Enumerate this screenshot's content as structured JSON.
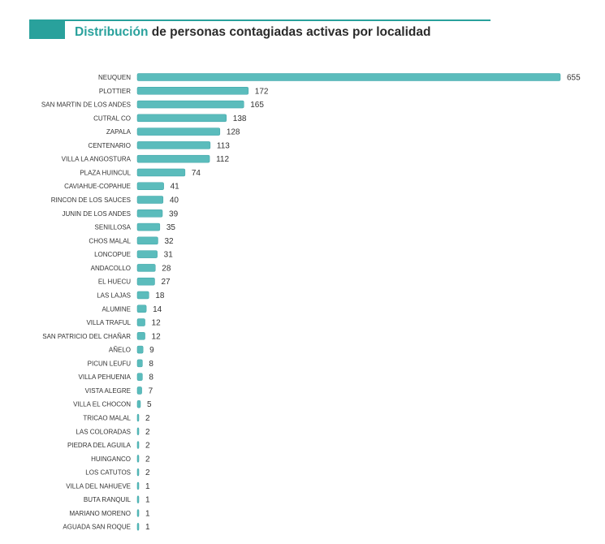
{
  "title": {
    "accent": "Distribución",
    "rest": " de personas contagiadas activas por localidad"
  },
  "colors": {
    "accent": "#29a19c",
    "bar": "#5bbcbc",
    "bar_shade": "#3aa3a6"
  },
  "chart_data": {
    "type": "bar",
    "orientation": "horizontal",
    "title": "Distribución de personas contagiadas activas por localidad",
    "categories": [
      "NEUQUEN",
      "PLOTTIER",
      "SAN MARTIN DE LOS ANDES",
      "CUTRAL CO",
      "ZAPALA",
      "CENTENARIO",
      "VILLA LA ANGOSTURA",
      "PLAZA HUINCUL",
      "CAVIAHUE-COPAHUE",
      "RINCON DE LOS SAUCES",
      "JUNIN DE LOS ANDES",
      "SENILLOSA",
      "CHOS MALAL",
      "LONCOPUE",
      "ANDACOLLO",
      "EL HUECU",
      "LAS LAJAS",
      "ALUMINE",
      "VILLA TRAFUL",
      "SAN PATRICIO DEL CHAÑAR",
      "AÑELO",
      "PICUN LEUFU",
      "VILLA PEHUENIA",
      "VISTA ALEGRE",
      "VILLA EL CHOCON",
      "TRICAO MALAL",
      "LAS COLORADAS",
      "PIEDRA DEL AGUILA",
      "HUINGANCO",
      "LOS CATUTOS",
      "VILLA DEL NAHUEVE",
      "BUTA RANQUIL",
      "MARIANO MORENO",
      "AGUADA SAN ROQUE"
    ],
    "values": [
      655,
      172,
      165,
      138,
      128,
      113,
      112,
      74,
      41,
      40,
      39,
      35,
      32,
      31,
      28,
      27,
      18,
      14,
      12,
      12,
      9,
      8,
      8,
      7,
      5,
      2,
      2,
      2,
      2,
      2,
      1,
      1,
      1,
      1
    ],
    "xlabel": "",
    "ylabel": "",
    "xlim": [
      0,
      655
    ],
    "grid": false,
    "legend": "none",
    "data_labels": true
  }
}
